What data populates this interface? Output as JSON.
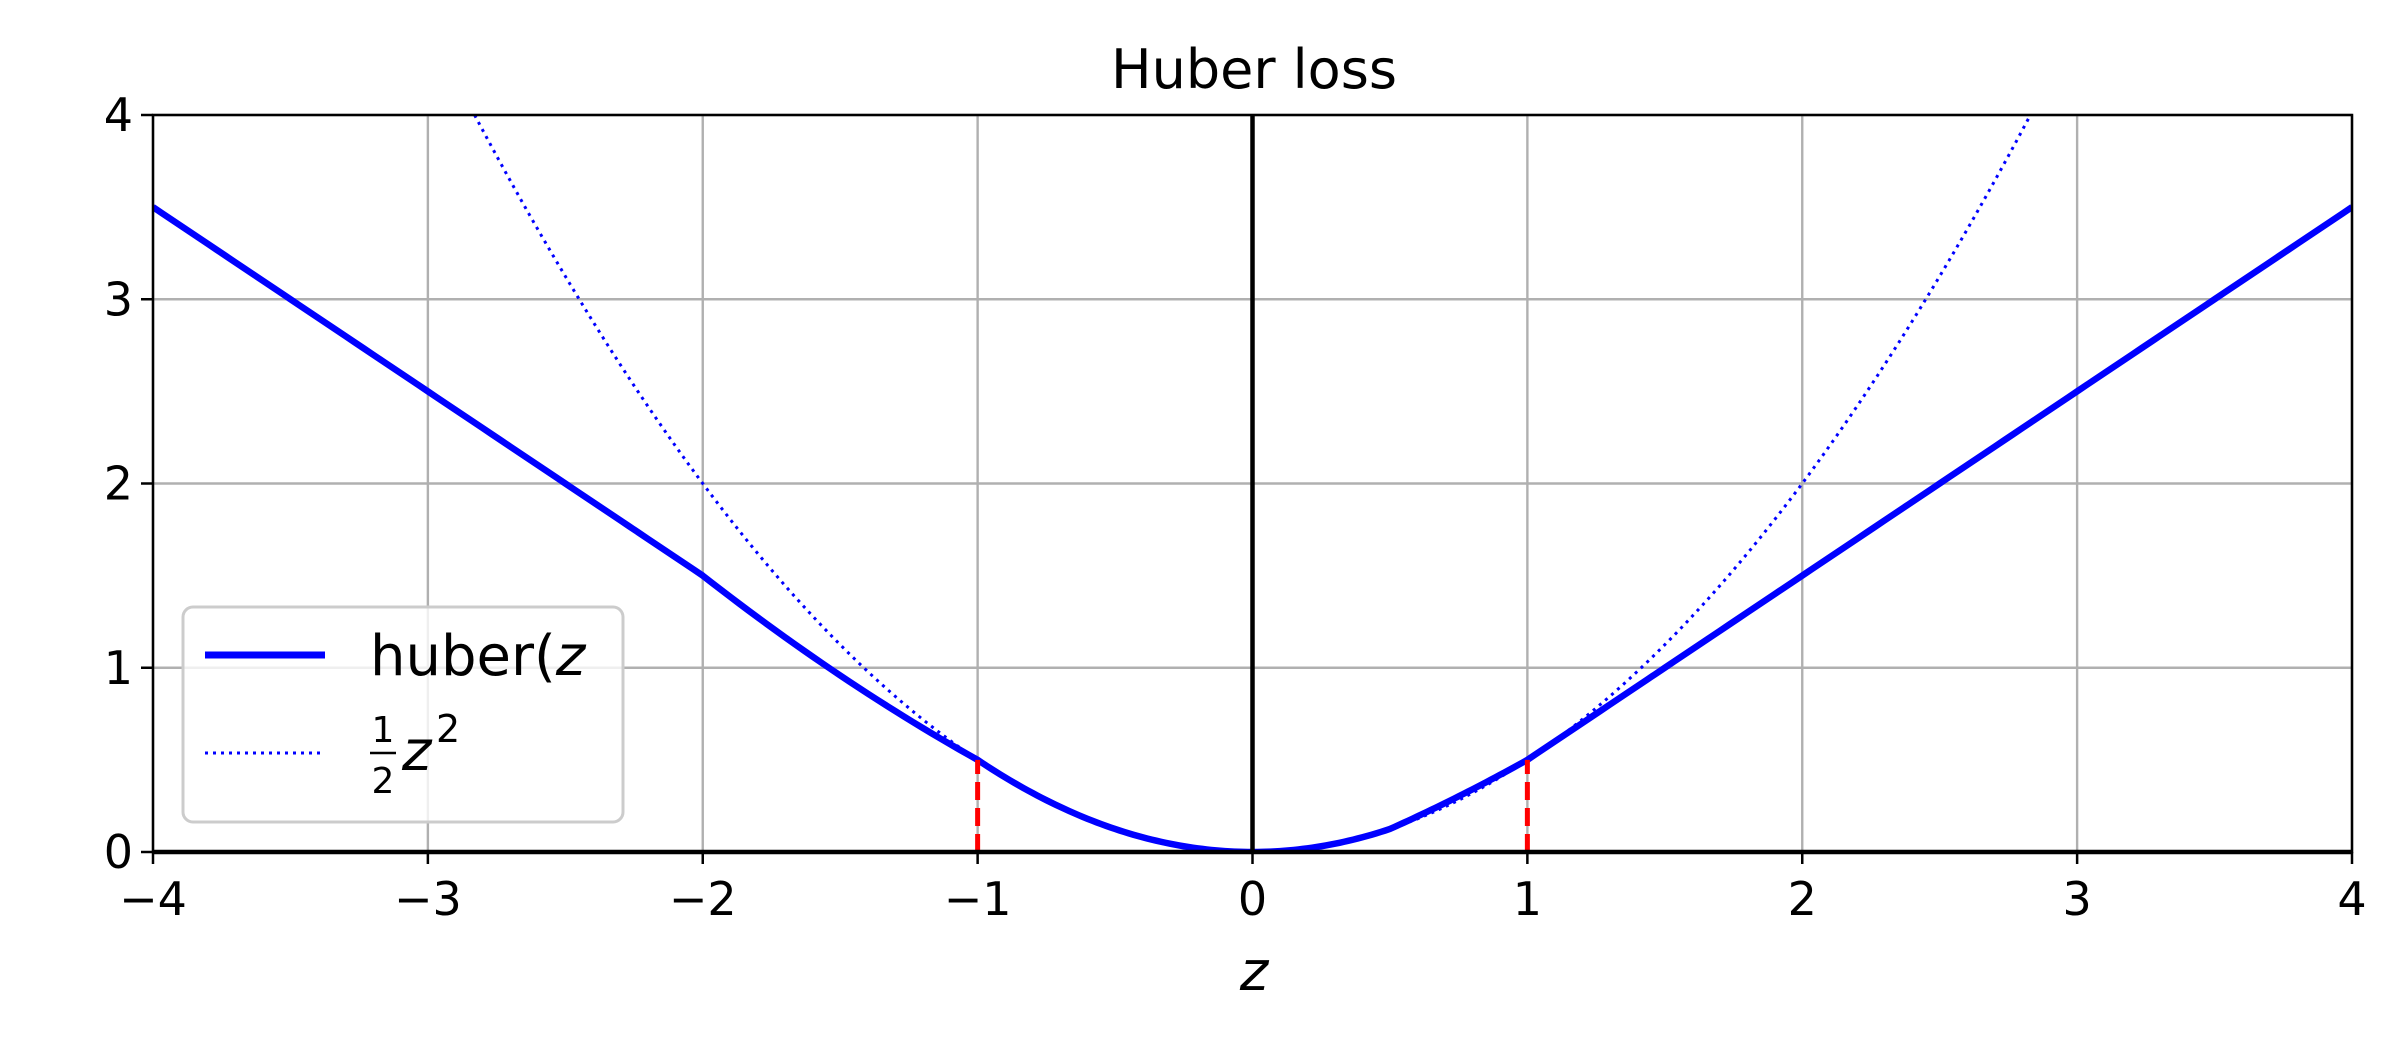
{
  "chart_data": {
    "type": "line",
    "title": "Huber loss",
    "xlabel": "z",
    "ylabel": "",
    "xlim": [
      -4,
      4
    ],
    "ylim": [
      0,
      4
    ],
    "xticks": [
      -4,
      -3,
      -2,
      -1,
      0,
      1,
      2,
      3,
      4
    ],
    "xtick_labels": [
      "−4",
      "−3",
      "−2",
      "−1",
      "0",
      "1",
      "2",
      "3",
      "4"
    ],
    "yticks": [
      0,
      1,
      2,
      3,
      4
    ],
    "ytick_labels": [
      "0",
      "1",
      "2",
      "3",
      "4"
    ],
    "grid": true,
    "legend_position": "lower-left",
    "series": [
      {
        "name": "huber(z",
        "legend_label": "huber(z",
        "style": "solid",
        "color": "#0000ff",
        "x": [
          -4,
          -3,
          -2,
          -1,
          -0.5,
          0,
          0.5,
          1,
          2,
          3,
          4
        ],
        "y": [
          3.5,
          2.5,
          1.5,
          0.5,
          0.125,
          0,
          0.125,
          0.5,
          1.5,
          2.5,
          3.5
        ]
      },
      {
        "name": "1/2 z^2",
        "legend_label": "½z²",
        "style": "dotted",
        "color": "#0000ff",
        "x": [
          -2.83,
          -2.5,
          -2,
          -1.5,
          -1,
          -0.5,
          0,
          0.5,
          1,
          1.5,
          2,
          2.5,
          2.83
        ],
        "y": [
          4.0,
          3.125,
          2.0,
          1.125,
          0.5,
          0.125,
          0,
          0.125,
          0.5,
          1.125,
          2.0,
          3.125,
          4.0
        ]
      }
    ],
    "vlines": [
      {
        "x": 0,
        "y0": 0,
        "y1": 4,
        "color": "#000000",
        "style": "solid"
      },
      {
        "x": -1,
        "y0": 0,
        "y1": 0.5,
        "color": "#ff0000",
        "style": "dashed"
      },
      {
        "x": 1,
        "y0": 0,
        "y1": 0.5,
        "color": "#ff0000",
        "style": "dashed"
      }
    ],
    "hlines": [
      {
        "y": 0,
        "color": "#000000",
        "style": "solid"
      }
    ],
    "legend": {
      "entries": [
        {
          "text": "huber(",
          "italic_text": "z",
          "style": "solid"
        },
        {
          "frac_num": "1",
          "frac_den": "2",
          "italic_text": "z",
          "sup": "2",
          "style": "dotted"
        }
      ]
    }
  }
}
